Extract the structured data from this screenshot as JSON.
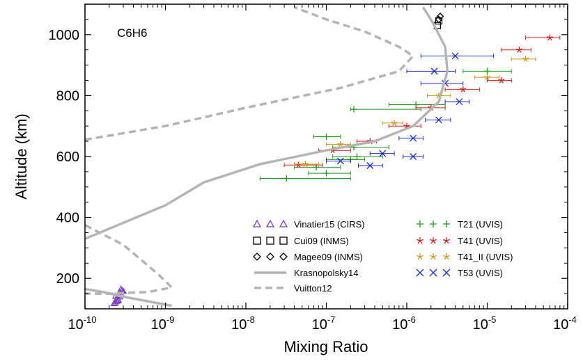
{
  "chart_data": {
    "type": "scatter",
    "title": "",
    "panel_label": "C6H6",
    "xlabel": "Mixing Ratio",
    "ylabel": "Altitude (km)",
    "xscale": "log",
    "xlim": [
      1e-10,
      0.0001
    ],
    "ylim": [
      100,
      1100
    ],
    "x_ticks": [
      {
        "base": "10",
        "exp": "-10"
      },
      {
        "base": "10",
        "exp": "-9"
      },
      {
        "base": "10",
        "exp": "-8"
      },
      {
        "base": "10",
        "exp": "-7"
      },
      {
        "base": "10",
        "exp": "-6"
      },
      {
        "base": "10",
        "exp": "-5"
      },
      {
        "base": "10",
        "exp": "-4"
      }
    ],
    "y_ticks": [
      "200",
      "400",
      "600",
      "800",
      "1000"
    ],
    "grid": false,
    "legend_position": "bottom-center",
    "series": [
      {
        "name": "Vinatier15 (CIRS)",
        "marker": "triangle",
        "color": "#7b3fc4",
        "points": [
          {
            "x": 2.4e-10,
            "y": 120
          },
          {
            "x": 2.5e-10,
            "y": 125
          },
          {
            "x": 2.6e-10,
            "y": 130
          },
          {
            "x": 2.5e-10,
            "y": 135
          },
          {
            "x": 2.7e-10,
            "y": 140
          },
          {
            "x": 2.6e-10,
            "y": 145
          },
          {
            "x": 2.8e-10,
            "y": 150
          },
          {
            "x": 2.7e-10,
            "y": 155
          },
          {
            "x": 2.9e-10,
            "y": 160
          },
          {
            "x": 2.8e-10,
            "y": 165
          },
          {
            "x": 2.6e-10,
            "y": 128
          },
          {
            "x": 2.4e-10,
            "y": 142
          },
          {
            "x": 2.3e-10,
            "y": 118
          },
          {
            "x": 3e-10,
            "y": 158
          }
        ]
      },
      {
        "name": "Cui09 (INMS)",
        "marker": "square",
        "color": "#000000",
        "points": [
          {
            "x": 2.4e-06,
            "y": 1030
          },
          {
            "x": 2.5e-06,
            "y": 1045
          }
        ]
      },
      {
        "name": "Magee09 (INMS)",
        "marker": "diamond",
        "color": "#000000",
        "points": [
          {
            "x": 2.5e-06,
            "y": 1050
          },
          {
            "x": 2.6e-06,
            "y": 1060
          }
        ]
      },
      {
        "name": "T21 (UVIS)",
        "marker": "plus",
        "color": "#1a9a1a",
        "points": [
          {
            "x": 3.2e-08,
            "y": 528,
            "xerr": [
              1.5e-08,
              2e-07
            ]
          },
          {
            "x": 1e-07,
            "y": 545,
            "xerr": [
              6e-08,
              2e-07
            ]
          },
          {
            "x": 7.5e-08,
            "y": 565,
            "xerr": [
              4e-08,
              1.5e-07
            ]
          },
          {
            "x": 2e-07,
            "y": 590,
            "xerr": [
              1e-07,
              3e-07
            ]
          },
          {
            "x": 2.4e-07,
            "y": 600,
            "xerr": [
              1.2e-07,
              5e-07
            ]
          },
          {
            "x": 2.2e-07,
            "y": 630,
            "xerr": [
              1.2e-07,
              6e-07
            ]
          },
          {
            "x": 1e-07,
            "y": 665,
            "xerr": [
              7e-08,
              1.5e-07
            ]
          },
          {
            "x": 1.3e-06,
            "y": 770,
            "xerr": [
              6e-07,
              3e-06
            ]
          },
          {
            "x": 2.2e-07,
            "y": 755,
            "xerr": [
              2e-07,
              1.5e-06
            ]
          },
          {
            "x": 1e-05,
            "y": 880,
            "xerr": [
              5e-06,
              2e-05
            ]
          }
        ]
      },
      {
        "name": "T41 (UVIS)",
        "marker": "star",
        "color": "#e01b1b",
        "points": [
          {
            "x": 4.5e-08,
            "y": 572,
            "xerr": [
              3e-08,
              9e-08
            ]
          },
          {
            "x": 3.5e-07,
            "y": 650,
            "xerr": [
              2.4e-07,
              4.2e-07
            ]
          },
          {
            "x": 1e-06,
            "y": 700,
            "xerr": [
              6e-07,
              1.5e-06
            ]
          },
          {
            "x": 2e-06,
            "y": 760,
            "xerr": [
              1.3e-06,
              3e-06
            ]
          },
          {
            "x": 5e-06,
            "y": 820,
            "xerr": [
              3e-06,
              8e-06
            ]
          },
          {
            "x": 1.5e-05,
            "y": 850,
            "xerr": [
              1e-05,
              2e-05
            ]
          },
          {
            "x": 2.5e-05,
            "y": 950,
            "xerr": [
              1.5e-05,
              3.5e-05
            ]
          },
          {
            "x": 6e-05,
            "y": 990,
            "xerr": [
              3e-05,
              8e-05
            ]
          },
          {
            "x": 1.2e-07,
            "y": 620,
            "xerr": [
              8e-08,
              2e-07
            ]
          }
        ]
      },
      {
        "name": "T41_II (UVIS)",
        "marker": "star",
        "color": "#c89a1a",
        "points": [
          {
            "x": 5.5e-08,
            "y": 575,
            "xerr": [
              4e-08,
              8e-08
            ]
          },
          {
            "x": 1.5e-07,
            "y": 640,
            "xerr": [
              1e-07,
              2e-07
            ]
          },
          {
            "x": 7e-07,
            "y": 710,
            "xerr": [
              5e-07,
              9e-07
            ]
          },
          {
            "x": 2.5e-06,
            "y": 800,
            "xerr": [
              1.8e-06,
              3.5e-06
            ]
          },
          {
            "x": 1e-05,
            "y": 860,
            "xerr": [
              7e-06,
              1.4e-05
            ]
          },
          {
            "x": 3e-05,
            "y": 920,
            "xerr": [
              2e-05,
              4e-05
            ]
          }
        ]
      },
      {
        "name": "T53 (UVIS)",
        "marker": "x",
        "color": "#1a2ad6",
        "points": [
          {
            "x": 1.5e-07,
            "y": 585,
            "xerr": [
              1e-07,
              2e-07
            ]
          },
          {
            "x": 5e-07,
            "y": 610,
            "xerr": [
              3.5e-07,
              7e-07
            ]
          },
          {
            "x": 1.2e-06,
            "y": 660,
            "xerr": [
              8e-07,
              1.6e-06
            ]
          },
          {
            "x": 2.5e-06,
            "y": 720,
            "xerr": [
              1.7e-06,
              3.5e-06
            ]
          },
          {
            "x": 4.5e-06,
            "y": 780,
            "xerr": [
              3e-06,
              6e-06
            ]
          },
          {
            "x": 3e-06,
            "y": 840,
            "xerr": [
              1.5e-06,
              5e-06
            ]
          },
          {
            "x": 2.2e-06,
            "y": 880,
            "xerr": [
              1e-06,
              4e-06
            ]
          },
          {
            "x": 4e-06,
            "y": 930,
            "xerr": [
              1.5e-06,
              1.2e-05
            ]
          },
          {
            "x": 1.2e-06,
            "y": 600,
            "xerr": [
              9e-07,
              1.6e-06
            ]
          },
          {
            "x": 3.5e-07,
            "y": 570,
            "xerr": [
              2.5e-07,
              5e-07
            ]
          }
        ]
      },
      {
        "name": "Krasnopolsky14",
        "line": "solid",
        "color": "#b4b4b4",
        "points": [
          {
            "x": 1e-10,
            "y": 330
          },
          {
            "x": 1e-09,
            "y": 440
          },
          {
            "x": 3e-09,
            "y": 515
          },
          {
            "x": 1.5e-08,
            "y": 575
          },
          {
            "x": 1e-07,
            "y": 620
          },
          {
            "x": 4e-07,
            "y": 650
          },
          {
            "x": 1.2e-06,
            "y": 700
          },
          {
            "x": 2.5e-06,
            "y": 780
          },
          {
            "x": 3.2e-06,
            "y": 880
          },
          {
            "x": 3e-06,
            "y": 960
          },
          {
            "x": 2.1e-06,
            "y": 1040
          },
          {
            "x": 1.6e-06,
            "y": 1090
          }
        ]
      },
      {
        "name": "Krasnopolsky14",
        "line": "solid",
        "color": "#b4b4b4",
        "points": [
          {
            "x": 1e-10,
            "y": 165
          },
          {
            "x": 1.7e-10,
            "y": 155
          },
          {
            "x": 3e-10,
            "y": 140
          },
          {
            "x": 6e-10,
            "y": 125
          },
          {
            "x": 1.2e-09,
            "y": 110
          }
        ]
      },
      {
        "name": "Vuitton12",
        "line": "dashed",
        "color": "#b4b4b4",
        "points": [
          {
            "x": 1e-10,
            "y": 655
          },
          {
            "x": 1e-09,
            "y": 700
          },
          {
            "x": 1e-08,
            "y": 760
          },
          {
            "x": 1.5e-07,
            "y": 825
          },
          {
            "x": 8e-07,
            "y": 880
          },
          {
            "x": 1.2e-06,
            "y": 930
          },
          {
            "x": 8e-07,
            "y": 960
          },
          {
            "x": 3e-07,
            "y": 1010
          },
          {
            "x": 1e-07,
            "y": 1050
          },
          {
            "x": 4e-08,
            "y": 1090
          }
        ]
      },
      {
        "name": "Vuitton12",
        "line": "dashed",
        "color": "#b4b4b4",
        "points": [
          {
            "x": 1e-10,
            "y": 375
          },
          {
            "x": 3e-10,
            "y": 310
          },
          {
            "x": 8e-10,
            "y": 215
          },
          {
            "x": 1.2e-09,
            "y": 170
          },
          {
            "x": 6e-10,
            "y": 155
          },
          {
            "x": 2e-10,
            "y": 150
          },
          {
            "x": 1e-10,
            "y": 150
          }
        ]
      }
    ]
  }
}
